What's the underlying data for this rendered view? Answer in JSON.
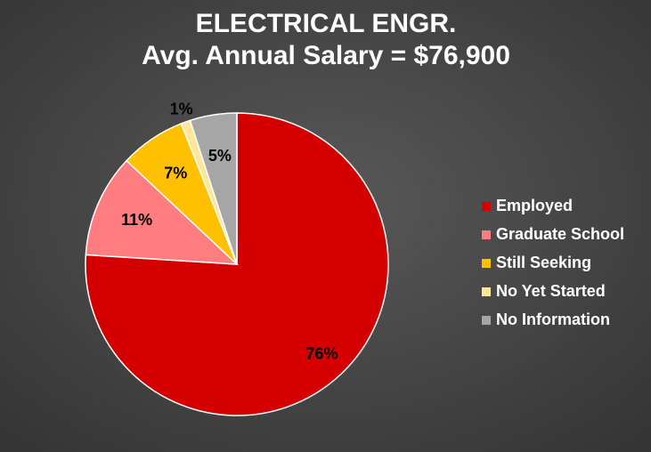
{
  "chart_data": {
    "type": "pie",
    "title": "ELECTRICAL ENGR.",
    "subtitle": "Avg. Annual Salary = $76,900",
    "categories": [
      "Employed",
      "Graduate School",
      "Still Seeking",
      "No Yet Started",
      "No Information"
    ],
    "values": [
      76,
      11,
      7,
      1,
      5
    ],
    "value_labels": [
      "76%",
      "11%",
      "7%",
      "1%",
      "5%"
    ],
    "colors": [
      "#d40000",
      "#ff7c80",
      "#ffc000",
      "#ffe699",
      "#a6a6a6"
    ],
    "legend": "right"
  }
}
